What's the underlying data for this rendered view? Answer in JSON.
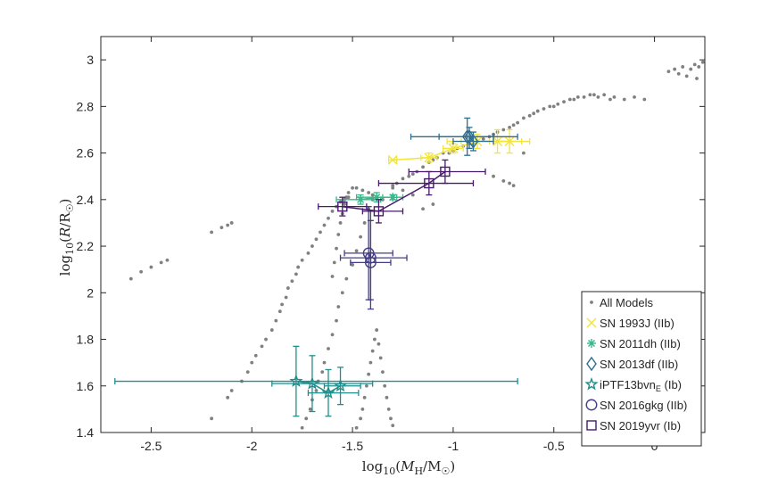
{
  "chart_data": {
    "type": "scatter",
    "xlabel": "log10(MH/M☉)",
    "ylabel": "log10(R/R☉)",
    "xlim": [
      -2.75,
      0.25
    ],
    "ylim": [
      1.4,
      3.1
    ],
    "xticks": [
      -2.5,
      -2,
      -1.5,
      -1,
      -0.5,
      0
    ],
    "xtick_labels": [
      "-2.5",
      "-2",
      "-1.5",
      "-1",
      "-0.5",
      "0"
    ],
    "yticks": [
      1.4,
      1.6,
      1.8,
      2,
      2.2,
      2.4,
      2.6,
      2.8,
      3
    ],
    "ytick_labels": [
      "1.4",
      "1.6",
      "1.8",
      "2",
      "2.2",
      "2.4",
      "2.6",
      "2.8",
      "3"
    ],
    "legend_position": "bottom-right",
    "models": {
      "name": "All Models",
      "color": "#808080",
      "x": [
        -2.6,
        -2.55,
        -2.5,
        -2.45,
        -2.42,
        -2.2,
        -2.15,
        -2.12,
        -2.1,
        -2.2,
        -2.12,
        -2.1,
        -2.05,
        -2.02,
        -2.0,
        -1.98,
        -1.95,
        -1.93,
        -1.9,
        -1.88,
        -1.86,
        -1.85,
        -1.83,
        -1.82,
        -1.8,
        -1.78,
        -1.77,
        -1.75,
        -1.72,
        -1.7,
        -1.68,
        -1.66,
        -1.64,
        -1.62,
        -1.6,
        -1.58,
        -1.56,
        -1.54,
        -1.52,
        -1.75,
        -1.73,
        -1.71,
        -1.7,
        -1.68,
        -1.67,
        -1.65,
        -1.64,
        -1.62,
        -1.6,
        -1.58,
        -1.57,
        -1.55,
        -1.53,
        -1.5,
        -1.48,
        -1.46,
        -1.44,
        -1.42,
        -1.4,
        -1.6,
        -1.59,
        -1.58,
        -1.57,
        -1.56,
        -1.55,
        -1.54,
        -1.53,
        -1.52,
        -1.5,
        -1.48,
        -1.45,
        -1.42,
        -1.4,
        -1.48,
        -1.46,
        -1.45,
        -1.44,
        -1.43,
        -1.42,
        -1.41,
        -1.4,
        -1.39,
        -1.38,
        -1.37,
        -1.36,
        -1.35,
        -1.34,
        -1.33,
        -1.32,
        -1.31,
        -1.3,
        -1.3,
        -1.28,
        -1.25,
        -1.22,
        -1.2,
        -1.18,
        -1.15,
        -1.12,
        -1.1,
        -1.08,
        -1.05,
        -1.02,
        -1.0,
        -0.98,
        -0.95,
        -0.92,
        -0.9,
        -0.88,
        -0.85,
        -0.82,
        -0.8,
        -0.78,
        -0.75,
        -0.72,
        -0.7,
        -0.68,
        -0.65,
        -0.62,
        -0.6,
        -0.58,
        -0.55,
        -0.52,
        -0.5,
        -0.48,
        -0.45,
        -0.42,
        -0.4,
        -0.38,
        -0.35,
        -0.32,
        -0.3,
        -0.28,
        -0.25,
        -0.22,
        -0.2,
        -0.15,
        -0.1,
        -0.05,
        0.07,
        0.1,
        0.12,
        0.14,
        0.16,
        0.18,
        0.2,
        0.21,
        0.22,
        0.24,
        -0.8,
        -0.75,
        -0.72,
        -0.7,
        -0.65,
        -1.2,
        -1.25,
        -1.3,
        -1.35,
        -1.1,
        -1.15
      ],
      "y": [
        2.06,
        2.09,
        2.11,
        2.13,
        2.14,
        2.26,
        2.28,
        2.29,
        2.3,
        1.46,
        1.55,
        1.58,
        1.62,
        1.66,
        1.7,
        1.73,
        1.77,
        1.8,
        1.84,
        1.88,
        1.92,
        1.95,
        1.98,
        2.02,
        2.05,
        2.08,
        2.11,
        2.14,
        2.17,
        2.2,
        2.23,
        2.26,
        2.29,
        2.32,
        2.35,
        2.37,
        2.39,
        2.4,
        2.41,
        1.42,
        1.46,
        1.5,
        1.54,
        1.58,
        1.62,
        1.66,
        1.7,
        1.76,
        1.82,
        1.88,
        1.94,
        2.0,
        2.06,
        2.12,
        2.18,
        2.24,
        2.3,
        2.36,
        2.4,
        2.07,
        2.13,
        2.19,
        2.25,
        2.3,
        2.34,
        2.38,
        2.41,
        2.43,
        2.45,
        2.45,
        2.44,
        2.43,
        2.42,
        1.42,
        1.46,
        1.5,
        1.55,
        1.6,
        1.65,
        1.7,
        1.75,
        1.8,
        1.84,
        1.78,
        1.72,
        1.66,
        1.6,
        1.55,
        1.5,
        1.46,
        1.43,
        2.45,
        2.47,
        2.49,
        2.5,
        2.51,
        2.52,
        2.54,
        2.56,
        2.57,
        2.58,
        2.6,
        2.6,
        2.61,
        2.62,
        2.63,
        2.64,
        2.64,
        2.65,
        2.66,
        2.67,
        2.68,
        2.69,
        2.7,
        2.71,
        2.72,
        2.73,
        2.75,
        2.76,
        2.77,
        2.78,
        2.79,
        2.8,
        2.8,
        2.81,
        2.82,
        2.83,
        2.83,
        2.84,
        2.84,
        2.85,
        2.85,
        2.84,
        2.85,
        2.83,
        2.84,
        2.83,
        2.84,
        2.83,
        2.95,
        2.96,
        2.94,
        2.97,
        2.93,
        2.96,
        2.98,
        2.92,
        2.97,
        2.99,
        2.5,
        2.48,
        2.47,
        2.46,
        2.6,
        2.42,
        2.44,
        2.46,
        2.4,
        2.38,
        2.36
      ]
    },
    "series": [
      {
        "name": "SN 1993J (IIb)",
        "marker": "x",
        "color": "#f2e53a",
        "points": [
          {
            "x": -1.3,
            "y": 2.57,
            "xerr": [
              0.02,
              0.02
            ],
            "yerr": [
              0,
              0
            ]
          },
          {
            "x": -1.12,
            "y": 2.58,
            "xerr": [
              0.04,
              0.04
            ],
            "yerr": [
              0.02,
              0.02
            ]
          },
          {
            "x": -1.0,
            "y": 2.62,
            "xerr": [
              0.05,
              0.05
            ],
            "yerr": [
              0.02,
              0.02
            ]
          },
          {
            "x": -0.88,
            "y": 2.65,
            "xerr": [
              0.08,
              0.08
            ],
            "yerr": [
              0.03,
              0.03
            ]
          },
          {
            "x": -0.78,
            "y": 2.65,
            "xerr": [
              0.25,
              0.12
            ],
            "yerr": [
              0.05,
              0.05
            ]
          },
          {
            "x": -0.72,
            "y": 2.65,
            "xerr": [
              0.1,
              0.1
            ],
            "yerr": [
              0.05,
              0.05
            ]
          }
        ]
      },
      {
        "name": "SN 2011dh (IIb)",
        "marker": "*",
        "color": "#37b88a",
        "points": [
          {
            "x": -1.46,
            "y": 2.4,
            "xerr": [
              0.12,
              0.1
            ],
            "yerr": [
              0.02,
              0.02
            ]
          },
          {
            "x": -1.38,
            "y": 2.41,
            "xerr": [
              0.1,
              0.1
            ],
            "yerr": [
              0.02,
              0.02
            ]
          },
          {
            "x": -1.3,
            "y": 2.41,
            "xerr": [
              0.05,
              0.05
            ],
            "yerr": [
              0.01,
              0.01
            ]
          }
        ]
      },
      {
        "name": "SN 2013df (IIb)",
        "marker": "diamond",
        "color": "#2f6d8e",
        "points": [
          {
            "x": -0.93,
            "y": 2.67,
            "xerr": [
              0.28,
              0.25
            ],
            "yerr": [
              0.08,
              0.08
            ]
          },
          {
            "x": -0.92,
            "y": 2.67,
            "xerr": [
              0.15,
              0.12
            ],
            "yerr": [
              0.05,
              0.04
            ]
          },
          {
            "x": -0.9,
            "y": 2.65,
            "xerr": [
              0.1,
              0.1
            ],
            "yerr": [
              0.04,
              0.04
            ]
          }
        ]
      },
      {
        "name": "iPTF13bvn_E (Ib)",
        "marker": "pentagram",
        "color": "#218e8c",
        "points": [
          {
            "x": -1.78,
            "y": 1.62,
            "xerr": [
              0.9,
              1.1
            ],
            "yerr": [
              0.15,
              0.15
            ]
          },
          {
            "x": -1.7,
            "y": 1.61,
            "xerr": [
              0.2,
              0.3
            ],
            "yerr": [
              0.12,
              0.12
            ]
          },
          {
            "x": -1.62,
            "y": 1.57,
            "xerr": [
              0.1,
              0.15
            ],
            "yerr": [
              0.1,
              0.1
            ]
          },
          {
            "x": -1.56,
            "y": 1.6,
            "xerr": [
              0.08,
              0.1
            ],
            "yerr": [
              0.08,
              0.08
            ]
          }
        ]
      },
      {
        "name": "SN 2016gkg (IIb)",
        "marker": "o",
        "color": "#433e85",
        "points": [
          {
            "x": -1.42,
            "y": 2.17,
            "xerr": [
              0.12,
              0.12
            ],
            "yerr": [
              0.2,
              0.2
            ]
          },
          {
            "x": -1.41,
            "y": 2.15,
            "xerr": [
              0.15,
              0.18
            ],
            "yerr": [
              0.18,
              0.2
            ]
          },
          {
            "x": -1.41,
            "y": 2.13,
            "xerr": [
              0.1,
              0.1
            ],
            "yerr": [
              0.2,
              0.18
            ]
          }
        ]
      },
      {
        "name": "SN 2019yvr (Ib)",
        "marker": "square",
        "color": "#481a6c",
        "points": [
          {
            "x": -1.55,
            "y": 2.37,
            "xerr": [
              0.12,
              0.12
            ],
            "yerr": [
              0.04,
              0.04
            ]
          },
          {
            "x": -1.37,
            "y": 2.35,
            "xerr": [
              0.08,
              0.12
            ],
            "yerr": [
              0.05,
              0.05
            ]
          },
          {
            "x": -1.12,
            "y": 2.47,
            "xerr": [
              0.25,
              0.22
            ],
            "yerr": [
              0.05,
              0.05
            ]
          },
          {
            "x": -1.04,
            "y": 2.52,
            "xerr": [
              0.18,
              0.2
            ],
            "yerr": [
              0.05,
              0.05
            ]
          }
        ]
      }
    ]
  }
}
